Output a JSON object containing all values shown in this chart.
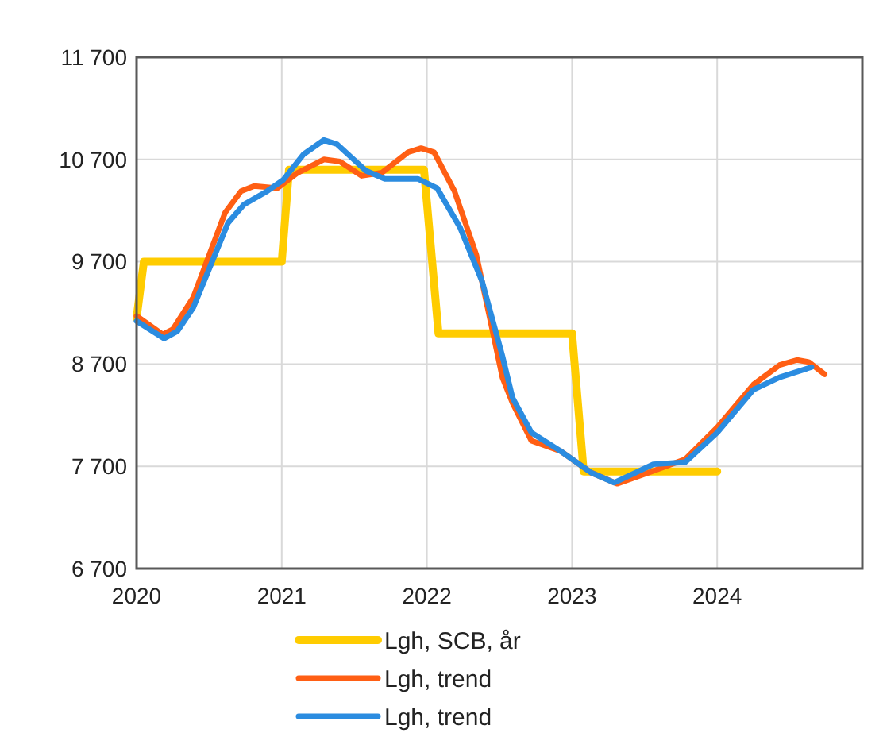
{
  "chart_data": {
    "type": "line",
    "xlim": [
      2020,
      2025
    ],
    "xticks": [
      2020,
      2021,
      2022,
      2023,
      2024
    ],
    "ylim": [
      6700,
      11700
    ],
    "yticks": [
      {
        "value": 6700,
        "label": "6 700"
      },
      {
        "value": 7700,
        "label": "7 700"
      },
      {
        "value": 8700,
        "label": "8 700"
      },
      {
        "value": 9700,
        "label": "9 700"
      },
      {
        "value": 10700,
        "label": "10 700"
      },
      {
        "value": 11700,
        "label": "11 700"
      }
    ],
    "grid": true,
    "legend": "bottom",
    "marker": "none",
    "line_style": "solid",
    "series": [
      {
        "name": "Lgh, SCB, år",
        "color": "#ffcc00",
        "x": [
          2020,
          2020.05,
          2021,
          2021.05,
          2021.98,
          2022.08,
          2023,
          2023.08,
          2024
        ],
        "values": [
          9150,
          9700,
          9700,
          10600,
          10600,
          9000,
          9000,
          7650,
          7650
        ]
      },
      {
        "name": "Lgh, trend",
        "color": "#ff5f14",
        "x": [
          2020,
          2020.18,
          2020.25,
          2020.39,
          2020.61,
          2020.72,
          2020.81,
          2020.97,
          2021.11,
          2021.29,
          2021.4,
          2021.55,
          2021.69,
          2021.87,
          2021.96,
          2022.05,
          2022.19,
          2022.34,
          2022.45,
          2022.52,
          2022.59,
          2022.72,
          2022.92,
          2023.13,
          2023.31,
          2023.53,
          2023.78,
          2024,
          2024.25,
          2024.43,
          2024.55,
          2024.63,
          2024.74
        ],
        "values": [
          9170,
          8990,
          9040,
          9350,
          10180,
          10390,
          10440,
          10420,
          10570,
          10700,
          10680,
          10540,
          10570,
          10770,
          10810,
          10770,
          10390,
          9770,
          9040,
          8570,
          8320,
          7950,
          7850,
          7640,
          7530,
          7640,
          7770,
          8080,
          8500,
          8690,
          8740,
          8720,
          8600
        ]
      },
      {
        "name": "Lgh, trend",
        "color": "#2b8ce0",
        "x": [
          2020,
          2020.19,
          2020.28,
          2020.39,
          2020.63,
          2020.74,
          2020.9,
          2021.01,
          2021.15,
          2021.29,
          2021.38,
          2021.58,
          2021.71,
          2021.94,
          2022.07,
          2022.23,
          2022.38,
          2022.52,
          2022.59,
          2022.72,
          2022.92,
          2023.13,
          2023.29,
          2023.56,
          2023.78,
          2024,
          2024.25,
          2024.43,
          2024.65
        ],
        "values": [
          9120,
          8950,
          9020,
          9250,
          10080,
          10260,
          10390,
          10500,
          10750,
          10890,
          10850,
          10590,
          10510,
          10510,
          10420,
          10030,
          9510,
          8780,
          8370,
          8030,
          7850,
          7640,
          7540,
          7720,
          7740,
          8030,
          8450,
          8570,
          8670
        ]
      }
    ]
  }
}
